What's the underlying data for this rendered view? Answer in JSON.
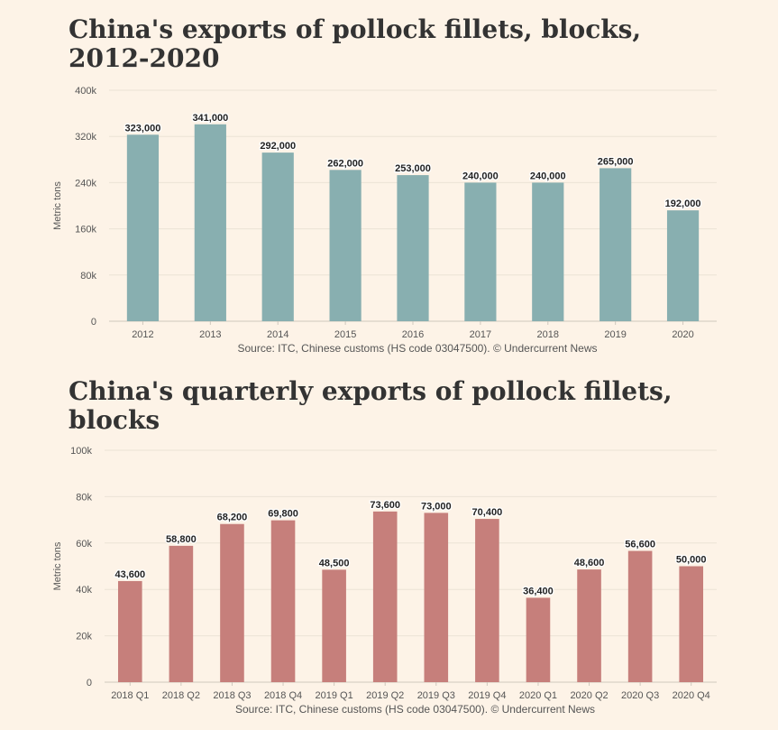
{
  "chart_data": [
    {
      "type": "bar",
      "title": "China's exports of pollock fillets, blocks, 2012-2020",
      "ylabel": "Metric tons",
      "xlabel": "",
      "ylim": [
        0,
        400000
      ],
      "yticks": [
        0,
        80000,
        160000,
        240000,
        320000,
        400000
      ],
      "ytick_labels": [
        "0",
        "80k",
        "160k",
        "240k",
        "320k",
        "400k"
      ],
      "categories": [
        "2012",
        "2013",
        "2014",
        "2015",
        "2016",
        "2017",
        "2018",
        "2019",
        "2020"
      ],
      "values": [
        323000,
        341000,
        292000,
        262000,
        253000,
        240000,
        240000,
        265000,
        192000
      ],
      "value_labels": [
        "323,000",
        "341,000",
        "292,000",
        "262,000",
        "253,000",
        "240,000",
        "240,000",
        "265,000",
        "192,000"
      ],
      "bar_color": "#88afb0",
      "source": "Source: ITC, Chinese customs (HS code 03047500). © Undercurrent News",
      "grid": true
    },
    {
      "type": "bar",
      "title": "China's quarterly exports of pollock fillets, blocks",
      "ylabel": "Metric tons",
      "xlabel": "",
      "ylim": [
        0,
        100000
      ],
      "yticks": [
        0,
        20000,
        40000,
        60000,
        80000,
        100000
      ],
      "ytick_labels": [
        "0",
        "20k",
        "40k",
        "60k",
        "80k",
        "100k"
      ],
      "categories": [
        "2018 Q1",
        "2018 Q2",
        "2018 Q3",
        "2018 Q4",
        "2019 Q1",
        "2019 Q2",
        "2019 Q3",
        "2019 Q4",
        "2020 Q1",
        "2020 Q2",
        "2020 Q3",
        "2020 Q4"
      ],
      "values": [
        43600,
        58800,
        68200,
        69800,
        48500,
        73600,
        73000,
        70400,
        36400,
        48600,
        56600,
        50000
      ],
      "value_labels": [
        "43,600",
        "58,800",
        "68,200",
        "69,800",
        "48,500",
        "73,600",
        "73,000",
        "70,400",
        "36,400",
        "48,600",
        "56,600",
        "50,000"
      ],
      "bar_color": "#c67f7b",
      "source": "Source: ITC, Chinese customs (HS code 03047500). © Undercurrent News",
      "grid": true
    }
  ]
}
